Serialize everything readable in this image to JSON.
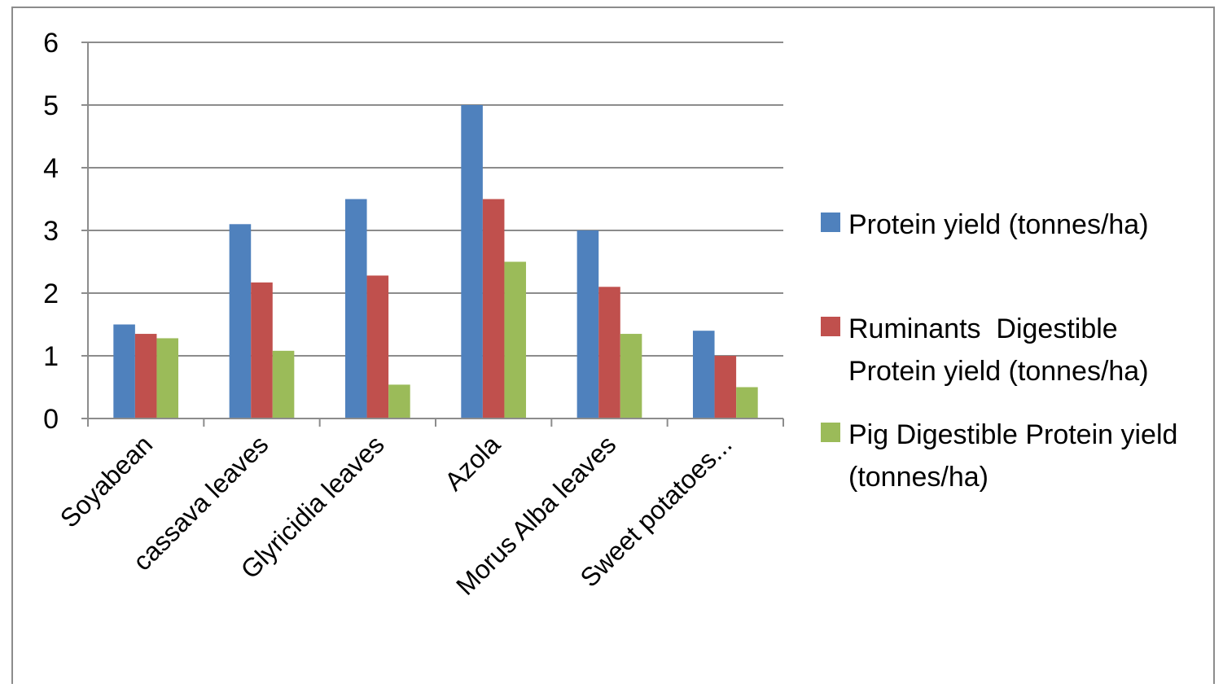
{
  "chart_data": {
    "type": "bar",
    "title": "",
    "xlabel": "",
    "ylabel": "",
    "ylim": [
      0,
      6
    ],
    "yticks": [
      "0",
      "1",
      "2",
      "3",
      "4",
      "5",
      "6"
    ],
    "grid": true,
    "legend_position": "right",
    "categories": [
      "Soyabean",
      "cassava leaves",
      "Glyricidia leaves",
      "Azola",
      "Morus Alba leaves",
      "Sweet potatoes..."
    ],
    "series": [
      {
        "name": "Protein yield (tonnes/ha)",
        "color": "#4f81bd",
        "values": [
          1.5,
          3.1,
          3.5,
          5.0,
          3.0,
          1.4
        ]
      },
      {
        "name": "Ruminants  Digestible Protein yield (tonnes/ha)",
        "color": "#c0504d",
        "values": [
          1.35,
          2.17,
          2.28,
          3.5,
          2.1,
          1.0
        ]
      },
      {
        "name": "Pig Digestible Protein yield (tonnes/ha)",
        "color": "#9bbb59",
        "values": [
          1.28,
          1.08,
          0.54,
          2.5,
          1.35,
          0.5
        ]
      }
    ]
  }
}
